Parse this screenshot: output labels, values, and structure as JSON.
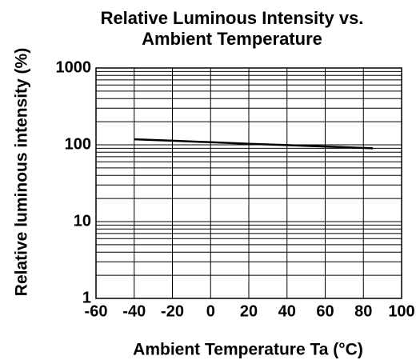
{
  "chart_data": {
    "type": "line",
    "title": [
      "Relative Luminous Intensity vs.",
      "Ambient Temperature"
    ],
    "xlabel": "Ambient Temperature Ta (°C)",
    "ylabel": "Relative luminous intensity (%)",
    "x": [
      -40,
      -20,
      0,
      20,
      40,
      60,
      85
    ],
    "series": [
      {
        "color": "#000000",
        "values": [
          118,
          113,
          108,
          103,
          99,
          95,
          90
        ]
      }
    ],
    "xlim": [
      -60,
      100
    ],
    "xticks": [
      -60,
      -40,
      -20,
      0,
      20,
      40,
      60,
      80,
      100
    ],
    "ylim": [
      1,
      1000
    ],
    "yticks": [
      1,
      10,
      100,
      1000
    ],
    "ylog": true,
    "grid": true
  }
}
